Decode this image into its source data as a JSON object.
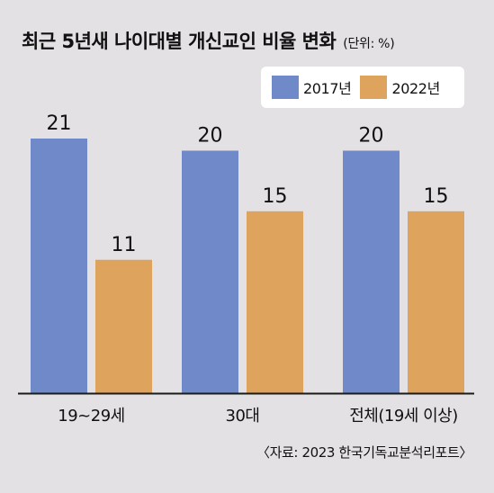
{
  "chart_data": {
    "type": "bar",
    "title": "최근 5년새 나이대별 개신교인 비율 변화",
    "unit_note": "(단위: %)",
    "categories": [
      "19~29세",
      "30대",
      "전체(19세 이상)"
    ],
    "series": [
      {
        "name": "2017년",
        "values": [
          21,
          20,
          20
        ],
        "color": "#6f89c9"
      },
      {
        "name": "2022년",
        "values": [
          11,
          15,
          15
        ],
        "color": "#dea35c"
      }
    ],
    "ylim": [
      0,
      21
    ],
    "grid": false,
    "legend_position": "top-right",
    "source": "〈자료: 2023 한국기독교분석리포트〉"
  }
}
